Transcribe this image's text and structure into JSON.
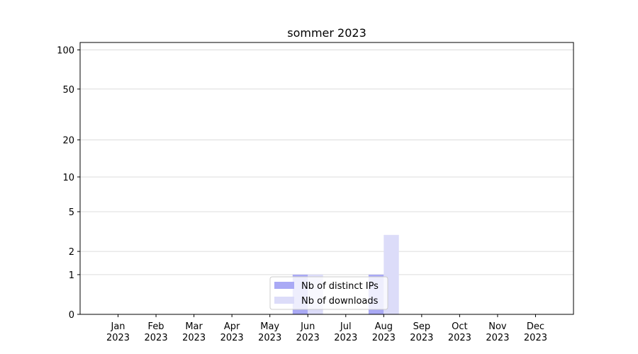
{
  "chart_data": {
    "type": "bar",
    "title": "sommer 2023",
    "categories": [
      "Jan\n2023",
      "Feb\n2023",
      "Mar\n2023",
      "Apr\n2023",
      "May\n2023",
      "Jun\n2023",
      "Jul\n2023",
      "Aug\n2023",
      "Sep\n2023",
      "Oct\n2023",
      "Nov\n2023",
      "Dec\n2023"
    ],
    "series": [
      {
        "name": "Nb of distinct IPs",
        "color": "#a9a9f5",
        "values": [
          0,
          0,
          0,
          0,
          0,
          1,
          0,
          1,
          0,
          0,
          0,
          0
        ]
      },
      {
        "name": "Nb of downloads",
        "color": "#dcdcf9",
        "values": [
          0,
          0,
          0,
          0,
          0,
          1,
          0,
          3,
          0,
          0,
          0,
          0
        ]
      }
    ],
    "yscale": "log1p",
    "ylim": [
      0,
      114
    ],
    "yticks": [
      0,
      1,
      2,
      5,
      10,
      20,
      50,
      100
    ],
    "grid": true,
    "legend": "lower center"
  }
}
